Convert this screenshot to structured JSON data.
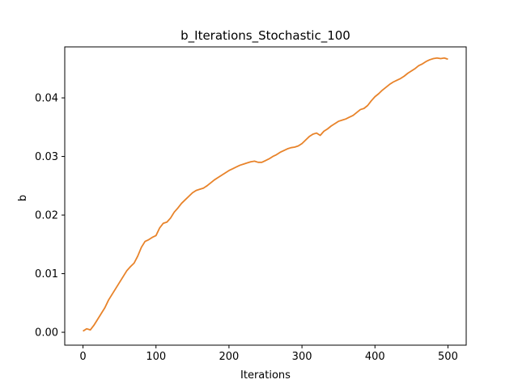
{
  "chart_data": {
    "type": "line",
    "title": "b_Iterations_Stochastic_100",
    "xlabel": "Iterations",
    "ylabel": "b",
    "xlim": [
      -25,
      525
    ],
    "ylim": [
      -0.0022,
      0.0487
    ],
    "xticks": [
      0,
      100,
      200,
      300,
      400,
      500
    ],
    "yticks": [
      0.0,
      0.01,
      0.02,
      0.03,
      0.04
    ],
    "xtick_labels": [
      "0",
      "100",
      "200",
      "300",
      "400",
      "500"
    ],
    "ytick_labels": [
      "0.00",
      "0.01",
      "0.02",
      "0.03",
      "0.04"
    ],
    "grid": false,
    "series": [
      {
        "color": "#e8832a",
        "x": [
          0,
          5,
          10,
          15,
          20,
          25,
          30,
          35,
          40,
          45,
          50,
          55,
          60,
          65,
          70,
          75,
          80,
          85,
          90,
          95,
          100,
          105,
          110,
          115,
          120,
          125,
          130,
          135,
          140,
          145,
          150,
          155,
          160,
          165,
          170,
          175,
          180,
          185,
          190,
          195,
          200,
          205,
          210,
          215,
          220,
          225,
          230,
          235,
          240,
          245,
          250,
          255,
          260,
          265,
          270,
          275,
          280,
          285,
          290,
          295,
          300,
          305,
          310,
          315,
          320,
          325,
          330,
          335,
          340,
          345,
          350,
          355,
          360,
          365,
          370,
          375,
          380,
          385,
          390,
          395,
          400,
          405,
          410,
          415,
          420,
          425,
          430,
          435,
          440,
          445,
          450,
          455,
          460,
          465,
          470,
          475,
          480,
          485,
          490,
          495,
          500
        ],
        "y": [
          0.0002,
          0.0006,
          0.0004,
          0.0012,
          0.0022,
          0.0032,
          0.0042,
          0.0055,
          0.0065,
          0.0075,
          0.0085,
          0.0095,
          0.0105,
          0.0112,
          0.0118,
          0.013,
          0.0145,
          0.0155,
          0.0158,
          0.0162,
          0.0165,
          0.0178,
          0.0186,
          0.0188,
          0.0195,
          0.0205,
          0.0212,
          0.022,
          0.0226,
          0.0232,
          0.0238,
          0.0242,
          0.0244,
          0.0246,
          0.025,
          0.0255,
          0.026,
          0.0264,
          0.0268,
          0.0272,
          0.0276,
          0.0279,
          0.0282,
          0.0285,
          0.0287,
          0.0289,
          0.0291,
          0.0292,
          0.029,
          0.029,
          0.0293,
          0.0296,
          0.03,
          0.0303,
          0.0307,
          0.031,
          0.0313,
          0.0315,
          0.0316,
          0.0318,
          0.0322,
          0.0328,
          0.0334,
          0.0338,
          0.034,
          0.0336,
          0.0343,
          0.0347,
          0.0352,
          0.0356,
          0.036,
          0.0362,
          0.0364,
          0.0367,
          0.037,
          0.0375,
          0.038,
          0.0382,
          0.0387,
          0.0395,
          0.0402,
          0.0407,
          0.0413,
          0.0418,
          0.0423,
          0.0427,
          0.043,
          0.0433,
          0.0437,
          0.0442,
          0.0446,
          0.045,
          0.0455,
          0.0458,
          0.0462,
          0.0465,
          0.0467,
          0.0468,
          0.0467,
          0.0468,
          0.0466
        ]
      }
    ]
  }
}
